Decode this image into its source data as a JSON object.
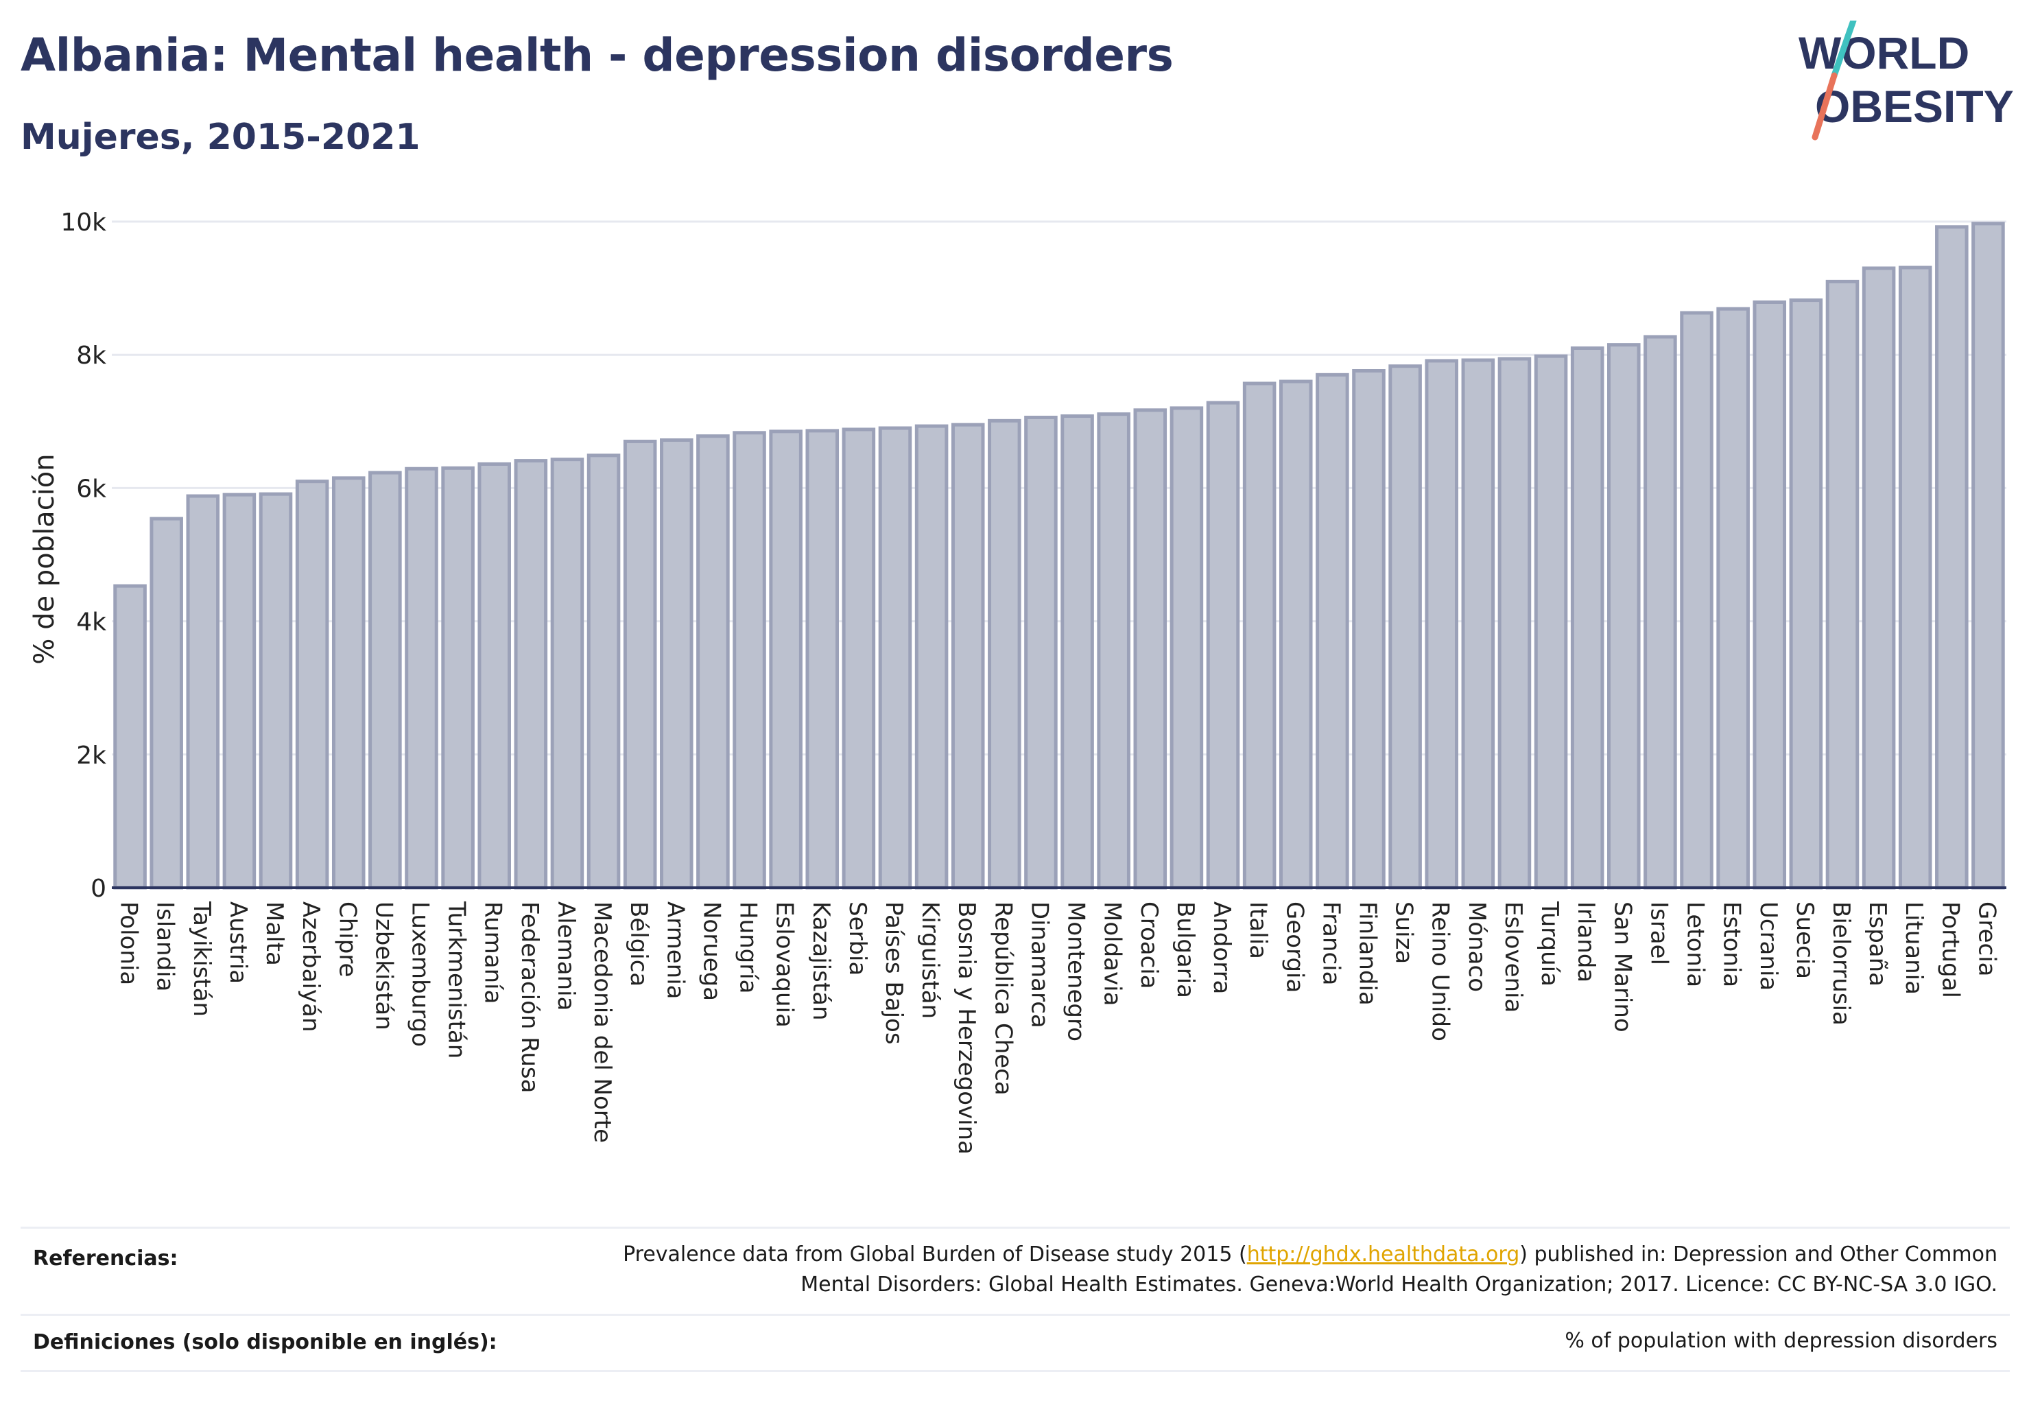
{
  "header": {
    "title": "Albania: Mental health - depression disorders",
    "subtitle": "Mujeres, 2015-2021"
  },
  "logo": {
    "line1": "WORLD",
    "line2": "OBESITY",
    "text_color": "#2c3560",
    "accent_teal": "#3fc1c0",
    "accent_coral": "#e8735a"
  },
  "chart_data": {
    "type": "bar",
    "ylabel": "% de población",
    "ylim": [
      0,
      10000
    ],
    "yticks": [
      0,
      2000,
      4000,
      6000,
      8000,
      10000
    ],
    "ytick_labels": [
      "0",
      "2k",
      "4k",
      "6k",
      "8k",
      "10k"
    ],
    "grid": true,
    "bar_color": "#bcc1cf",
    "bar_border_color": "#9ba1b8",
    "categories": [
      "Polonia",
      "Islandia",
      "Tayikistán",
      "Austria",
      "Malta",
      "Azerbaiyán",
      "Chipre",
      "Uzbekistán",
      "Luxemburgo",
      "Turkmenistán",
      "Rumanía",
      "Federación Rusa",
      "Alemania",
      "Macedonia del Norte",
      "Bélgica",
      "Armenia",
      "Noruega",
      "Hungría",
      "Eslovaquia",
      "Kazajistán",
      "Serbia",
      "Países Bajos",
      "Kirguistán",
      "Bosnia y Herzegovina",
      "República Checa",
      "Dinamarca",
      "Montenegro",
      "Moldavia",
      "Croacia",
      "Bulgaria",
      "Andorra",
      "Italia",
      "Georgia",
      "Francia",
      "Finlandia",
      "Suiza",
      "Reino Unido",
      "Mónaco",
      "Eslovenia",
      "Turquía",
      "Irlanda",
      "San Marino",
      "Israel",
      "Letonia",
      "Estonia",
      "Ucrania",
      "Suecia",
      "Bielorrusia",
      "España",
      "Lituania",
      "Portugal",
      "Grecia"
    ],
    "values": [
      4530,
      5540,
      5880,
      5900,
      5910,
      6100,
      6150,
      6230,
      6290,
      6300,
      6360,
      6410,
      6430,
      6490,
      6700,
      6720,
      6780,
      6830,
      6850,
      6860,
      6880,
      6900,
      6930,
      6950,
      7010,
      7060,
      7080,
      7110,
      7170,
      7200,
      7280,
      7570,
      7600,
      7700,
      7760,
      7830,
      7910,
      7920,
      7940,
      7980,
      8100,
      8150,
      8270,
      8630,
      8690,
      8790,
      8820,
      9100,
      9300,
      9310,
      9920,
      9970
    ]
  },
  "footer": {
    "references_label": "Referencias:",
    "references_pre": "Prevalence data from Global Burden of Disease study 2015 (",
    "references_link": "http://ghdx.healthdata.org",
    "references_post": ") published in: Depression and Other Common",
    "references_line2": "Mental Disorders: Global Health Estimates. Geneva:World Health Organization; 2017. Licence: CC BY-NC-SA 3.0 IGO.",
    "definitions_label": "Definiciones (solo disponible en inglés):",
    "definitions_text": "% of population with depression disorders"
  }
}
